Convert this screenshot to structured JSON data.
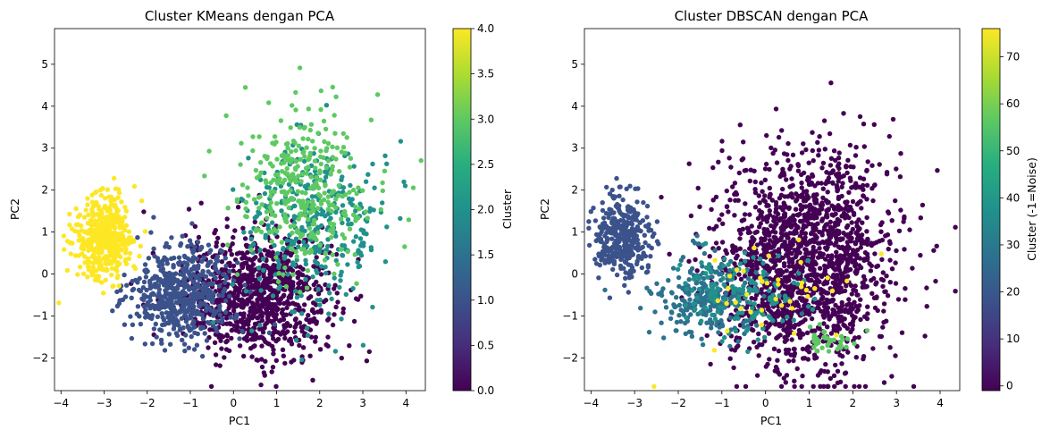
{
  "chart_data": [
    {
      "type": "scatter",
      "title": "Cluster KMeans dengan PCA",
      "xlabel": "PC1",
      "ylabel": "PC2",
      "xlim": [
        -4.15,
        4.45
      ],
      "ylim": [
        -2.78,
        5.85
      ],
      "xticks": [
        -4,
        -3,
        -2,
        -1,
        0,
        1,
        2,
        3,
        4
      ],
      "yticks": [
        -2,
        -1,
        0,
        1,
        2,
        3,
        4,
        5
      ],
      "grid": false,
      "colormap": "viridis",
      "colorbar": {
        "label": "Cluster",
        "range": [
          0.0,
          4.0
        ],
        "ticks": [
          "0.0",
          "0.5",
          "1.0",
          "1.5",
          "2.0",
          "2.5",
          "3.0",
          "3.5",
          "4.0"
        ]
      },
      "clusters": [
        {
          "value": 0,
          "color": "#440154",
          "center": [
            0.6,
            -0.5
          ],
          "spread": [
            0.85,
            0.75
          ],
          "approx_count": 900
        },
        {
          "value": 1,
          "color": "#3b528b",
          "center": [
            -1.2,
            -0.45
          ],
          "spread": [
            0.6,
            0.55
          ],
          "approx_count": 550
        },
        {
          "value": 2,
          "color": "#21918c",
          "center": [
            1.9,
            1.2
          ],
          "spread": [
            0.8,
            1.0
          ],
          "approx_count": 350
        },
        {
          "value": 3,
          "color": "#5ec962",
          "center": [
            1.6,
            2.0
          ],
          "spread": [
            0.75,
            1.0
          ],
          "approx_count": 350
        },
        {
          "value": 4,
          "color": "#fde725",
          "center": [
            -3.0,
            0.85
          ],
          "spread": [
            0.35,
            0.5
          ],
          "approx_count": 450
        }
      ]
    },
    {
      "type": "scatter",
      "title": "Cluster DBSCAN dengan PCA",
      "xlabel": "PC1",
      "ylabel": "PC2",
      "xlim": [
        -4.15,
        4.45
      ],
      "ylim": [
        -2.78,
        5.85
      ],
      "xticks": [
        -4,
        -3,
        -2,
        -1,
        0,
        1,
        2,
        3,
        4
      ],
      "yticks": [
        -2,
        -1,
        0,
        1,
        2,
        3,
        4,
        5
      ],
      "grid": false,
      "colormap": "viridis",
      "colorbar": {
        "label": "Cluster (-1=Noise)",
        "range": [
          -1,
          76
        ],
        "ticks": [
          "0",
          "10",
          "20",
          "30",
          "40",
          "50",
          "60",
          "70"
        ]
      },
      "clusters": [
        {
          "value": -1,
          "color": "#440154",
          "center": [
            0.9,
            0.3
          ],
          "spread": [
            1.0,
            1.3
          ],
          "approx_count": 1700
        },
        {
          "value": 22,
          "color": "#3b528b",
          "center": [
            -3.3,
            0.9
          ],
          "spread": [
            0.3,
            0.5
          ],
          "approx_count": 350
        },
        {
          "value": 28,
          "color": "#2c728e",
          "center": [
            -1.3,
            -0.6
          ],
          "spread": [
            0.6,
            0.5
          ],
          "approx_count": 250
        },
        {
          "value": 40,
          "color": "#21918c",
          "center": [
            -0.6,
            -0.5
          ],
          "spread": [
            0.7,
            0.5
          ],
          "approx_count": 150
        },
        {
          "value": 60,
          "color": "#5ec962",
          "center": [
            1.4,
            -1.6
          ],
          "spread": [
            0.3,
            0.15
          ],
          "approx_count": 40
        },
        {
          "value": 72,
          "color": "#fde725",
          "center": [
            0.0,
            -0.6
          ],
          "spread": [
            0.9,
            0.6
          ],
          "approx_count": 40
        }
      ]
    }
  ]
}
